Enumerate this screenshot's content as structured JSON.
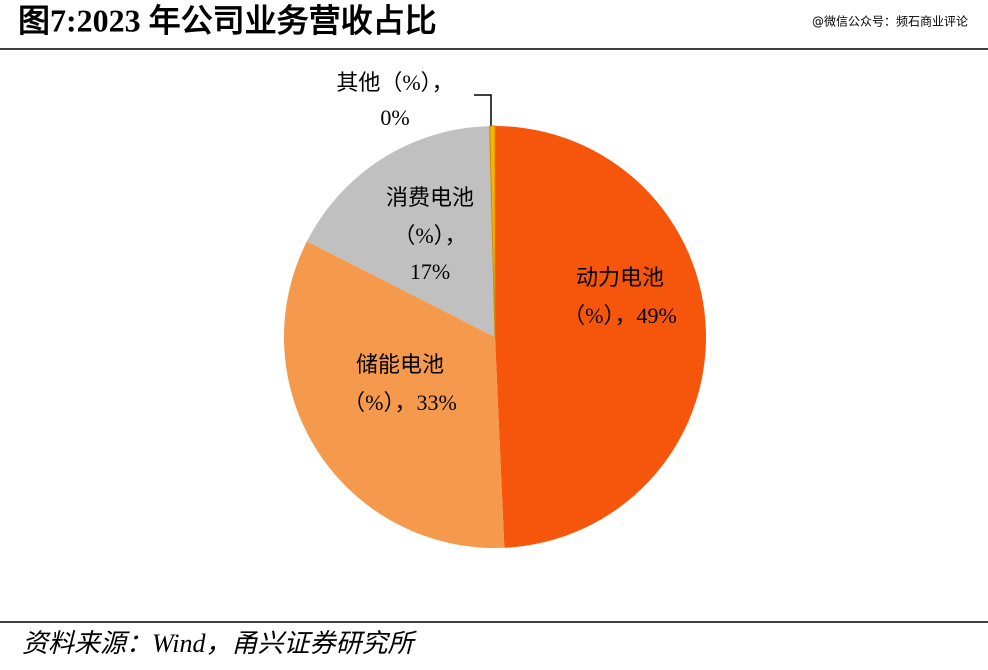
{
  "chart_data": {
    "type": "pie",
    "title": "图7:2023 年公司业务营收占比",
    "watermark": "@微信公众号：频石商业评论",
    "source": "资料来源：Wind，甬兴证券研究所",
    "categories": [
      "动力电池",
      "储能电池",
      "消费电池",
      "其他"
    ],
    "values": [
      49,
      33,
      17,
      0.4
    ],
    "value_labels": [
      "49%",
      "33%",
      "17%",
      "0%"
    ],
    "label_unit": "（%）",
    "label_separator": "，",
    "colors": [
      "#f5560c",
      "#f59a4c",
      "#c0c0c0",
      "#f7b500"
    ]
  }
}
